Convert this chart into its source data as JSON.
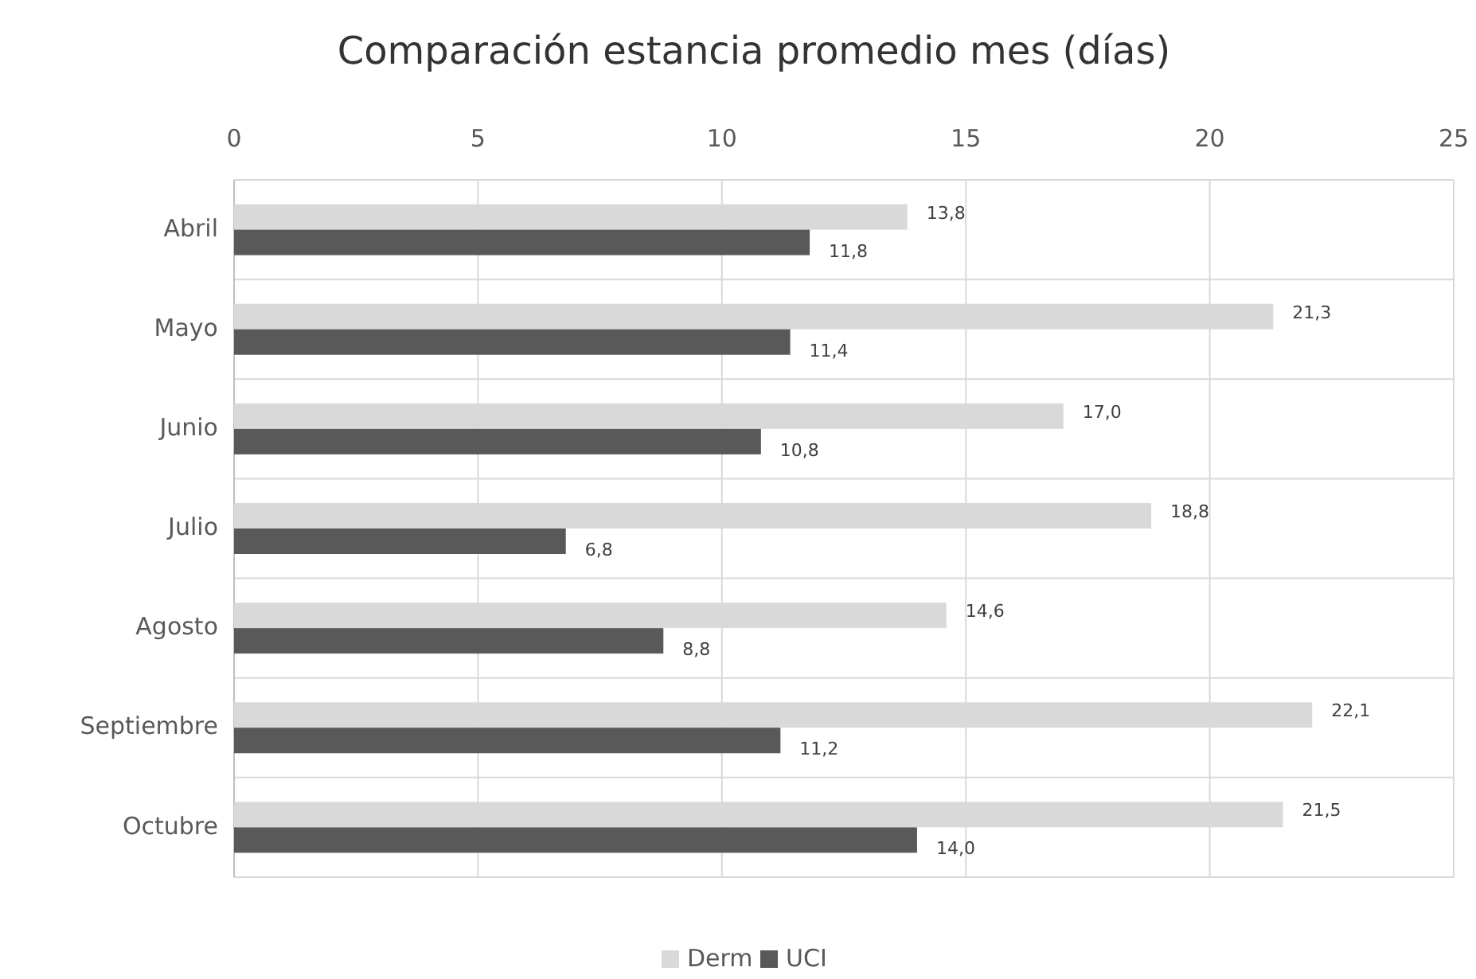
{
  "chart_data": {
    "type": "bar",
    "orientation": "horizontal",
    "title": "Comparación estancia promedio mes (días)",
    "categories": [
      "Abril",
      "Mayo",
      "Junio",
      "Julio",
      "Agosto",
      "Septiembre",
      "Octubre"
    ],
    "series": [
      {
        "name": "Derm",
        "color": "#d9d9d9",
        "values": [
          13.8,
          21.3,
          17.0,
          18.8,
          14.6,
          22.1,
          21.5
        ],
        "value_labels": [
          "13,8",
          "21,3",
          "17,0",
          "18,8",
          "14,6",
          "22,1",
          "21,5"
        ]
      },
      {
        "name": "UCI",
        "color": "#595959",
        "values": [
          11.8,
          11.4,
          10.8,
          6.8,
          8.8,
          11.2,
          14.0
        ],
        "value_labels": [
          "11,8",
          "11,4",
          "10,8",
          "6,8",
          "8,8",
          "11,2",
          "14,0"
        ]
      }
    ],
    "xlim": [
      0,
      25
    ],
    "xticks": [
      0,
      5,
      10,
      15,
      20,
      25
    ],
    "grid": true,
    "legend": "bottom"
  }
}
